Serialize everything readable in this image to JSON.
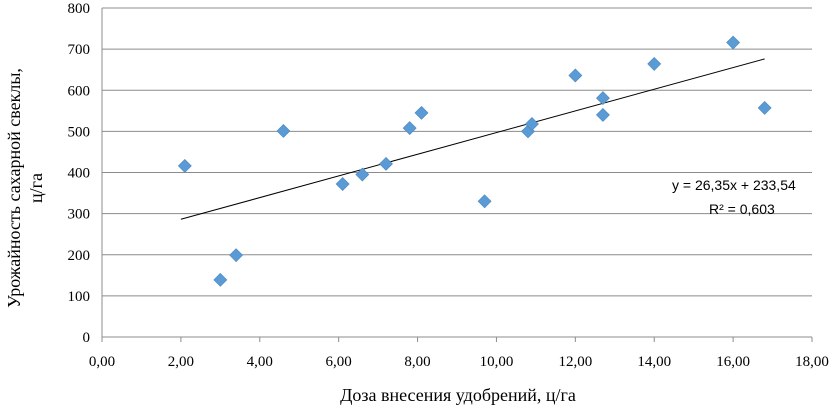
{
  "chart_data": {
    "type": "scatter",
    "title": "",
    "xlabel": "Доза внесения удобрений, ц/га",
    "ylabel_lines": [
      "Урожайность сахарной свеклы,",
      "ц/га"
    ],
    "xlim": [
      0,
      18
    ],
    "ylim": [
      0,
      800
    ],
    "x_ticks": [
      0,
      2,
      4,
      6,
      8,
      10,
      12,
      14,
      16,
      18
    ],
    "x_tick_labels": [
      "0,00",
      "2,00",
      "4,00",
      "6,00",
      "8,00",
      "10,00",
      "12,00",
      "14,00",
      "16,00",
      "18,00"
    ],
    "y_ticks": [
      0,
      100,
      200,
      300,
      400,
      500,
      600,
      700,
      800
    ],
    "y_tick_labels": [
      "0",
      "100",
      "200",
      "300",
      "400",
      "500",
      "600",
      "700",
      "800"
    ],
    "grid": "horizontal",
    "marker": "diamond",
    "marker_color": "#5b9bd5",
    "points": [
      {
        "x": 2.1,
        "y": 416
      },
      {
        "x": 3.0,
        "y": 139
      },
      {
        "x": 3.4,
        "y": 199
      },
      {
        "x": 4.6,
        "y": 501
      },
      {
        "x": 6.1,
        "y": 372
      },
      {
        "x": 6.6,
        "y": 395
      },
      {
        "x": 7.2,
        "y": 421
      },
      {
        "x": 7.8,
        "y": 508
      },
      {
        "x": 8.1,
        "y": 545
      },
      {
        "x": 9.7,
        "y": 330
      },
      {
        "x": 10.8,
        "y": 500
      },
      {
        "x": 10.9,
        "y": 518
      },
      {
        "x": 12.0,
        "y": 636
      },
      {
        "x": 12.7,
        "y": 581
      },
      {
        "x": 12.7,
        "y": 540
      },
      {
        "x": 14.0,
        "y": 664
      },
      {
        "x": 16.0,
        "y": 716
      },
      {
        "x": 16.8,
        "y": 557
      }
    ],
    "trendline": {
      "slope": 26.35,
      "intercept": 233.54,
      "x_range": [
        2.0,
        16.8
      ],
      "color": "#000000",
      "equation_label": "y = 26,35x + 233,54",
      "r2_label": "R² = 0,603"
    }
  }
}
